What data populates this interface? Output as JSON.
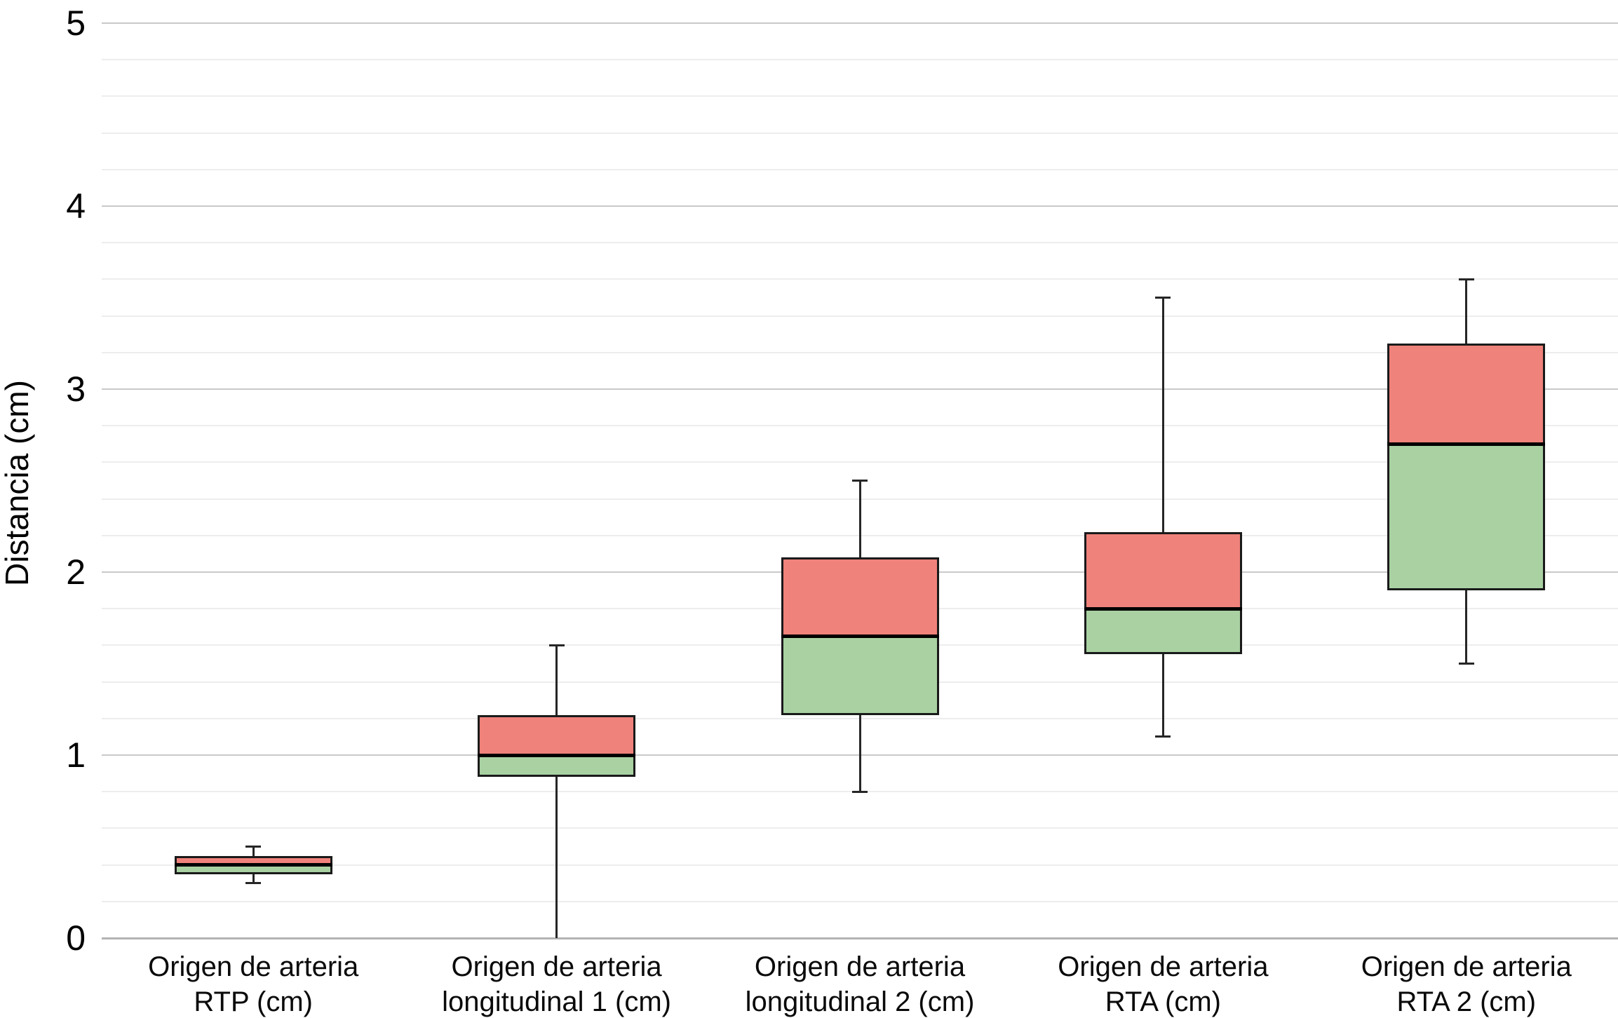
{
  "y_axis": {
    "label": "Distancia (cm)",
    "ticks": [
      "0",
      "1",
      "2",
      "3",
      "4",
      "5"
    ],
    "min": 0,
    "max": 5,
    "major_step": 1,
    "minor_step": 0.2
  },
  "chart_data": {
    "type": "boxplot",
    "title": "",
    "xlabel": "",
    "ylabel": "Distancia (cm)",
    "ylim": [
      0,
      5
    ],
    "grid": "horizontal",
    "legend_position": "none",
    "categories": [
      "Origen de arteria RTP (cm)",
      "Origen de arteria longitudinal 1 (cm)",
      "Origen de arteria longitudinal 2 (cm)",
      "Origen de arteria RTA (cm)",
      "Origen de arteria RTA 2 (cm)"
    ],
    "series": [
      {
        "label_line1": "Origen de arteria",
        "label_line2": "RTP (cm)",
        "min": 0.3,
        "q1": 0.35,
        "median": 0.4,
        "q3": 0.45,
        "max": 0.5
      },
      {
        "label_line1": "Origen de arteria",
        "label_line2": "longitudinal 1 (cm)",
        "min": 0.0,
        "q1": 0.88,
        "median": 1.0,
        "q3": 1.22,
        "max": 1.6
      },
      {
        "label_line1": "Origen de arteria",
        "label_line2": "longitudinal 2 (cm)",
        "min": 0.8,
        "q1": 1.22,
        "median": 1.65,
        "q3": 2.08,
        "max": 2.5
      },
      {
        "label_line1": "Origen de arteria",
        "label_line2": "RTA (cm)",
        "min": 1.1,
        "q1": 1.55,
        "median": 1.8,
        "q3": 2.22,
        "max": 3.5
      },
      {
        "label_line1": "Origen de arteria",
        "label_line2": "RTA 2 (cm)",
        "min": 1.5,
        "q1": 1.9,
        "median": 2.7,
        "q3": 3.25,
        "max": 3.6
      }
    ],
    "colors": {
      "upper_box_fill": "#ef827b",
      "lower_box_fill": "#a9d1a2",
      "box_border": "#1a1a1a",
      "median_line": "#000000",
      "whisker": "#262626",
      "gridline_major": "#c9c9c9",
      "gridline_minor": "#ededed",
      "zero_line": "#b3b3b3",
      "background": "#ffffff"
    }
  }
}
